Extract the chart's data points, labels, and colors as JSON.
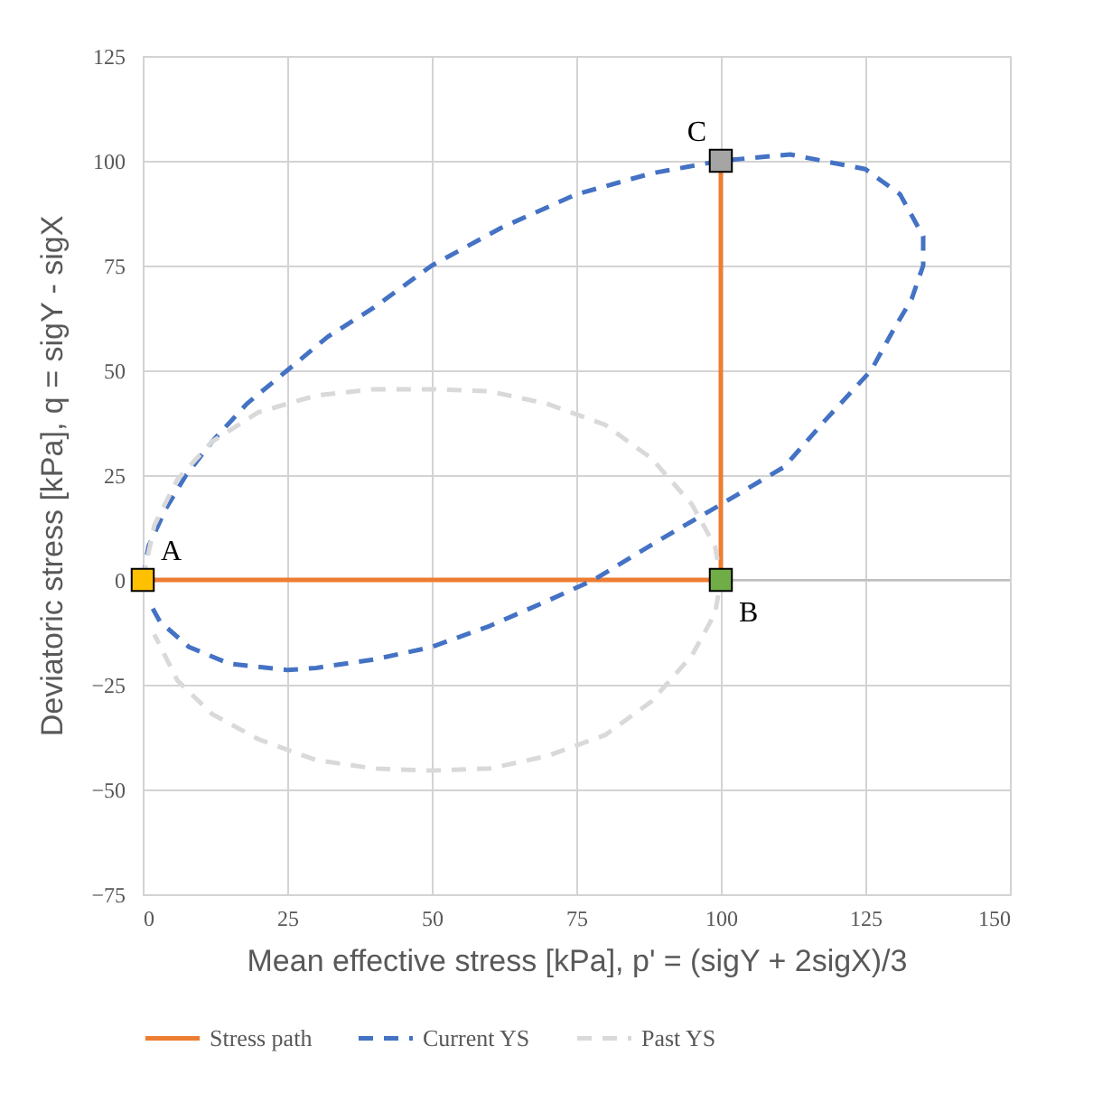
{
  "chart_data": {
    "type": "line",
    "xlabel": "Mean effective stress [kPa], p' = (sigY + 2sigX)/3",
    "ylabel": "Deviatoric stress [kPa], q = sigY  - sigX",
    "xlim": [
      0,
      150
    ],
    "xticks": [
      0,
      25,
      50,
      75,
      100,
      125,
      150
    ],
    "ylim": [
      -75,
      125
    ],
    "yticks": [
      -75,
      -50,
      -25,
      0,
      25,
      50,
      75,
      100,
      125
    ],
    "grid": true,
    "legend": "bottom",
    "series": [
      {
        "name": "Stress path",
        "color": "#ed7d31",
        "line_style": "solid",
        "marker": "square",
        "colors": [
          "#ffc000",
          "#70ad47",
          "#a5a5a5"
        ],
        "x": [
          0,
          100,
          100
        ],
        "values": [
          0,
          0,
          100
        ],
        "value_labels": [
          "A",
          "B",
          "C"
        ]
      },
      {
        "name": "Current YS",
        "color": "#4472c4",
        "line_style": "dashed",
        "marker": "none",
        "x": [
          0,
          1,
          4,
          7.5,
          12,
          18,
          25,
          32,
          40,
          50,
          62,
          75,
          88,
          100,
          112,
          125,
          131,
          135,
          135,
          133,
          130,
          126,
          118,
          111,
          100,
          90,
          78,
          70,
          60,
          50,
          40,
          30,
          25,
          15,
          8,
          3,
          1
        ],
        "values": [
          0,
          8,
          17,
          25,
          33,
          42,
          50,
          58,
          65,
          75,
          84,
          92,
          97,
          100,
          101.5,
          98,
          92,
          82,
          75,
          67,
          60,
          50,
          38,
          27,
          18,
          10,
          0,
          -5,
          -11,
          -16,
          -19,
          -21,
          -21.5,
          -20,
          -16,
          -10,
          -5
        ]
      },
      {
        "name": "Past YS",
        "color": "#d9d9d9",
        "line_style": "dashed",
        "marker": "none",
        "x": [
          0,
          2,
          6,
          12,
          20,
          30,
          40,
          50,
          60,
          70,
          80,
          88,
          95,
          99,
          100,
          99,
          95,
          88,
          80,
          70,
          60,
          50,
          40,
          30,
          20,
          12,
          6,
          2
        ],
        "values": [
          0,
          13,
          24,
          33,
          40,
          44,
          45.5,
          45.5,
          45,
          42,
          37,
          29,
          18,
          8,
          0,
          -8,
          -18,
          -29,
          -37,
          -42,
          -45,
          -45.5,
          -45,
          -43,
          -38,
          -32,
          -24,
          -13
        ]
      }
    ]
  }
}
